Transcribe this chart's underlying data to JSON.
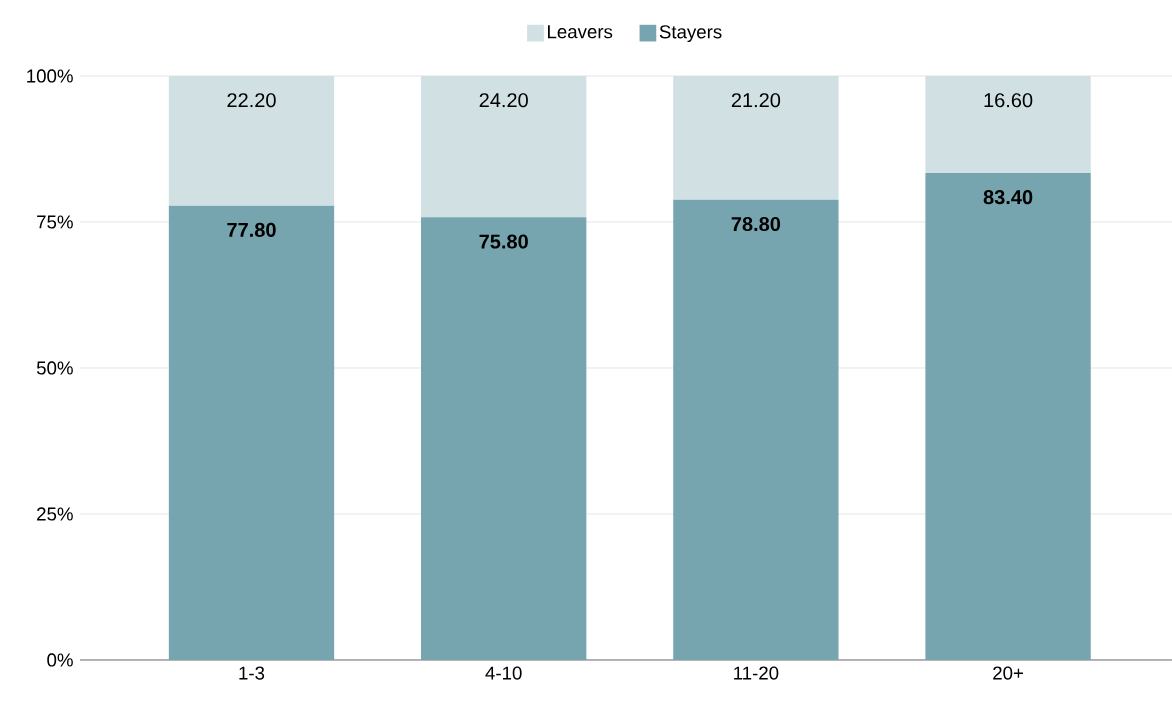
{
  "chart_data": {
    "type": "bar",
    "stacked": true,
    "categories": [
      "1-3",
      "4-10",
      "11-20",
      "20+"
    ],
    "series": [
      {
        "name": "Stayers",
        "color": "#76a5af",
        "values": [
          77.8,
          75.8,
          78.8,
          83.4
        ],
        "value_labels": [
          "77.80",
          "75.80",
          "78.80",
          "83.40"
        ]
      },
      {
        "name": "Leavers",
        "color": "#d0e0e3",
        "values": [
          22.2,
          24.2,
          21.2,
          16.6
        ],
        "value_labels": [
          "22.20",
          "24.20",
          "21.20",
          "16.60"
        ]
      }
    ],
    "ylim": [
      0,
      100
    ],
    "yticks": [
      {
        "value": 0,
        "label": "0%"
      },
      {
        "value": 25,
        "label": "25%"
      },
      {
        "value": 50,
        "label": "50%"
      },
      {
        "value": 75,
        "label": "75%"
      },
      {
        "value": 100,
        "label": "100%"
      }
    ],
    "grid": "y",
    "legend": "top"
  }
}
